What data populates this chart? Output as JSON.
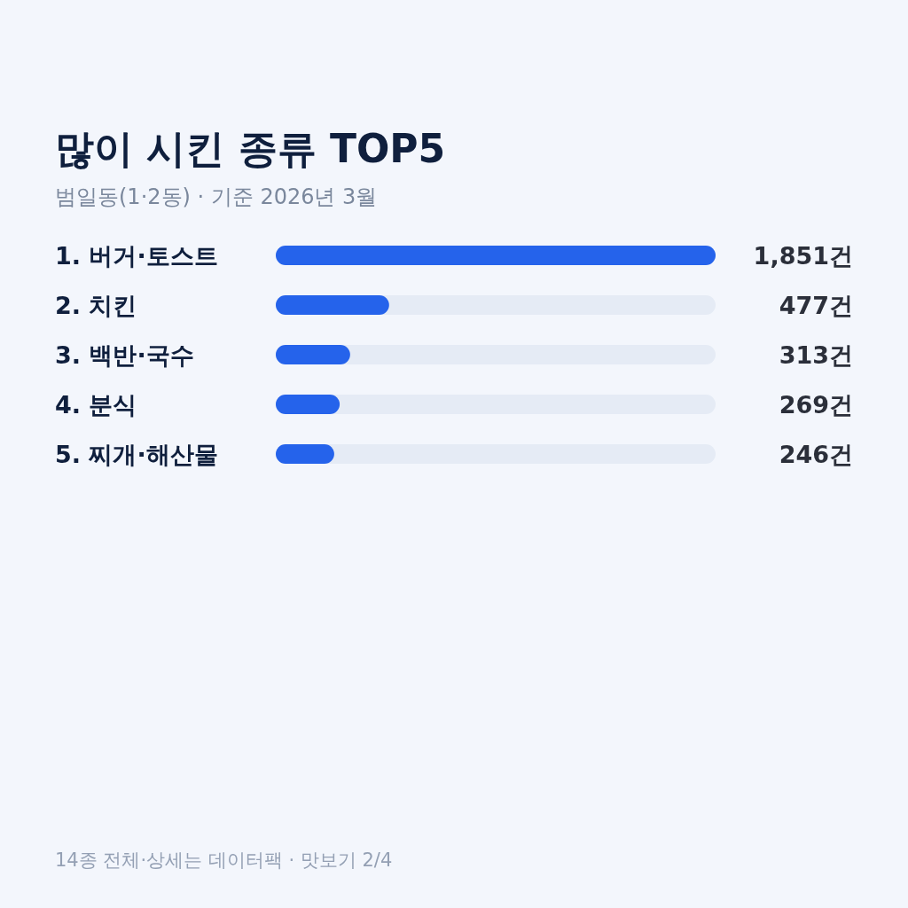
{
  "chart_data": {
    "type": "bar",
    "orientation": "horizontal",
    "title": "많이 시킨 종류 TOP5",
    "subtitle": "범일동(1·2동) · 기준 2026년 3월",
    "categories": [
      "1. 버거·토스트",
      "2. 치킨",
      "3. 백반·국수",
      "4. 분식",
      "5. 찌개·해산물"
    ],
    "values": [
      1851,
      477,
      313,
      269,
      246
    ],
    "value_labels": [
      "1,851건",
      "477건",
      "313건",
      "269건",
      "246건"
    ],
    "color": "#2563eb",
    "annotations": [
      "14종 전체·상세는 데이터팩 · 맛보기 2/4"
    ]
  }
}
